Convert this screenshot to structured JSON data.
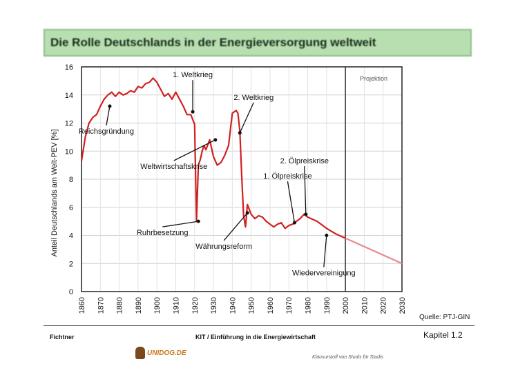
{
  "title": "Die Rolle Deutschlands in der Energieversorgung weltweit",
  "chart_data": {
    "type": "line",
    "ylabel": "Anteil Deutschlands am Welt-PEV [%]",
    "xlabel": "",
    "xlim": [
      1860,
      2030
    ],
    "ylim": [
      0,
      16
    ],
    "x_ticks": [
      "1860",
      "1870",
      "1880",
      "1890",
      "1900",
      "1910",
      "1920",
      "1930",
      "1940",
      "1950",
      "1960",
      "1970",
      "1980",
      "1990",
      "2000",
      "2010",
      "2020",
      "2030"
    ],
    "y_ticks": [
      "0",
      "2",
      "4",
      "6",
      "8",
      "10",
      "12",
      "14",
      "16"
    ],
    "grid": true,
    "projection_label": "Projektion",
    "projection_start": 2000,
    "series": [
      {
        "color": "#d02020",
        "x": [
          1860,
          1862,
          1864,
          1866,
          1868,
          1870,
          1872,
          1874,
          1876,
          1878,
          1880,
          1882,
          1884,
          1886,
          1888,
          1890,
          1892,
          1894,
          1896,
          1898,
          1900,
          1902,
          1904,
          1906,
          1908,
          1910,
          1912,
          1914,
          1916,
          1918,
          1920,
          1921,
          1922,
          1923,
          1924,
          1925,
          1926,
          1928,
          1930,
          1932,
          1934,
          1936,
          1938,
          1940,
          1942,
          1943,
          1944,
          1945,
          1946,
          1947,
          1948,
          1950,
          1952,
          1954,
          1956,
          1958,
          1960,
          1962,
          1964,
          1966,
          1968,
          1970,
          1972,
          1974,
          1976,
          1978,
          1980,
          1985,
          1990,
          1995,
          2000
        ],
        "y": [
          9.3,
          11,
          12,
          12.4,
          12.6,
          13.2,
          13.7,
          14,
          14.2,
          13.9,
          14.2,
          14,
          14.1,
          14.3,
          14.2,
          14.6,
          14.5,
          14.8,
          14.9,
          15.2,
          14.9,
          14.4,
          13.9,
          14.1,
          13.7,
          14.2,
          13.7,
          13.2,
          12.6,
          12.6,
          11.9,
          5,
          9,
          9.4,
          10,
          10.4,
          10.1,
          10.8,
          9.6,
          9,
          9.2,
          9.7,
          10.4,
          12.7,
          12.9,
          12.7,
          11.4,
          8.2,
          5.4,
          4.6,
          6.2,
          5.5,
          5.2,
          5.4,
          5.3,
          5,
          4.8,
          4.6,
          4.8,
          4.9,
          4.5,
          4.7,
          4.8,
          5,
          5.2,
          5.5,
          5.3,
          5,
          4.5,
          4.1,
          3.8
        ]
      },
      {
        "color": "#e88a8a",
        "x": [
          2000,
          2010,
          2020,
          2030
        ],
        "y": [
          3.8,
          3.2,
          2.6,
          2.0
        ]
      }
    ],
    "annotations": [
      {
        "text": "Reichsgründung",
        "year": 1875,
        "value": 13.2
      },
      {
        "text": "1. Weltkrieg",
        "year": 1919,
        "value": 12.8
      },
      {
        "text": "2. Weltkrieg",
        "year": 1944,
        "value": 11.3
      },
      {
        "text": "Weltwirtschaftskrise",
        "year": 1931,
        "value": 10.8
      },
      {
        "text": "Ruhrbesetzung",
        "year": 1922,
        "value": 5.0
      },
      {
        "text": "Währungsreform",
        "year": 1948,
        "value": 5.6
      },
      {
        "text": "1. Ölpreiskrise",
        "year": 1973,
        "value": 4.9
      },
      {
        "text": "2. Ölpreiskrise",
        "year": 1979,
        "value": 5.5
      },
      {
        "text": "Wiedervereinigung",
        "year": 1990,
        "value": 4.0
      }
    ]
  },
  "footer": {
    "source": "Quelle: PTJ-GIN",
    "author": "Fichtner",
    "center": "KIT   /   Einführung in die Energiewirtschaft",
    "chapter": "Kapitel 1.2",
    "logo_text": "UNIDOG.DE",
    "watermark": "Klausurstoff von Studis für Studis"
  }
}
